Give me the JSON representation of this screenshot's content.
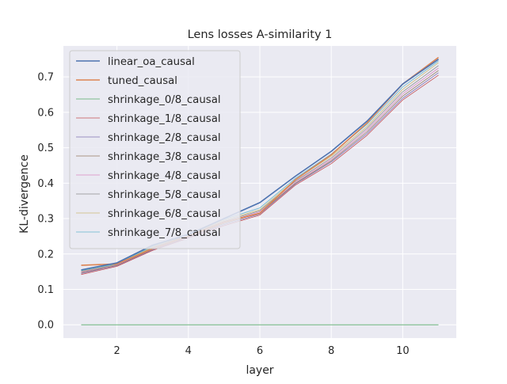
{
  "chart_data": {
    "type": "line",
    "title": "Lens losses A-similarity 1",
    "xlabel": "layer",
    "ylabel": "KL-divergence",
    "xlim": [
      0.5,
      11.5
    ],
    "ylim": [
      -0.0375,
      0.7875
    ],
    "xticks": [
      2,
      4,
      6,
      8,
      10
    ],
    "yticks": [
      0.0,
      0.1,
      0.2,
      0.3,
      0.4,
      0.5,
      0.6,
      0.7
    ],
    "ytick_labels": [
      "0.0",
      "0.1",
      "0.2",
      "0.3",
      "0.4",
      "0.5",
      "0.6",
      "0.7"
    ],
    "grid": true,
    "legend_position": "upper-left",
    "x": [
      1,
      2,
      3,
      4,
      5,
      6,
      7,
      8,
      9,
      10,
      11
    ],
    "series": [
      {
        "name": "linear_oa_causal",
        "color": "#4c72b0",
        "width": 1.6,
        "values": [
          0.155,
          0.175,
          0.225,
          0.255,
          0.3,
          0.345,
          0.42,
          0.49,
          0.575,
          0.68,
          0.75
        ]
      },
      {
        "name": "tuned_causal",
        "color": "#dd8452",
        "width": 1.6,
        "values": [
          0.168,
          0.172,
          0.215,
          0.25,
          0.29,
          0.315,
          0.41,
          0.48,
          0.57,
          0.68,
          0.755
        ]
      },
      {
        "name": "shrinkage_0/8_causal",
        "color": "#55a868",
        "width": 0.8,
        "values": [
          0,
          0,
          0,
          0,
          0,
          0,
          0,
          0,
          0,
          0,
          0
        ]
      },
      {
        "name": "shrinkage_1/8_causal",
        "color": "#c44e52",
        "width": 0.8,
        "values": [
          0.142,
          0.165,
          0.21,
          0.245,
          0.28,
          0.31,
          0.395,
          0.455,
          0.535,
          0.635,
          0.705
        ]
      },
      {
        "name": "shrinkage_2/8_causal",
        "color": "#8172b3",
        "width": 0.8,
        "values": [
          0.145,
          0.167,
          0.212,
          0.247,
          0.283,
          0.313,
          0.398,
          0.46,
          0.54,
          0.64,
          0.712
        ]
      },
      {
        "name": "shrinkage_3/8_causal",
        "color": "#937860",
        "width": 0.8,
        "values": [
          0.147,
          0.168,
          0.214,
          0.249,
          0.286,
          0.316,
          0.4,
          0.463,
          0.545,
          0.646,
          0.718
        ]
      },
      {
        "name": "shrinkage_4/8_causal",
        "color": "#da8bc3",
        "width": 0.8,
        "values": [
          0.149,
          0.169,
          0.216,
          0.251,
          0.289,
          0.319,
          0.403,
          0.467,
          0.55,
          0.652,
          0.725
        ]
      },
      {
        "name": "shrinkage_5/8_causal",
        "color": "#8c8c8c",
        "width": 0.8,
        "values": [
          0.151,
          0.17,
          0.218,
          0.253,
          0.292,
          0.322,
          0.406,
          0.471,
          0.555,
          0.658,
          0.732
        ]
      },
      {
        "name": "shrinkage_6/8_causal",
        "color": "#ccb974",
        "width": 0.8,
        "values": [
          0.152,
          0.171,
          0.22,
          0.255,
          0.295,
          0.325,
          0.41,
          0.476,
          0.56,
          0.665,
          0.74
        ]
      },
      {
        "name": "shrinkage_7/8_causal",
        "color": "#64b5cd",
        "width": 0.8,
        "values": [
          0.153,
          0.172,
          0.222,
          0.257,
          0.298,
          0.33,
          0.414,
          0.482,
          0.566,
          0.672,
          0.745
        ]
      }
    ],
    "colors": {
      "background": "#eaeaf2",
      "grid": "#ffffff",
      "legend_bg": "#eaeaf2",
      "legend_edge": "#cccccc"
    }
  }
}
